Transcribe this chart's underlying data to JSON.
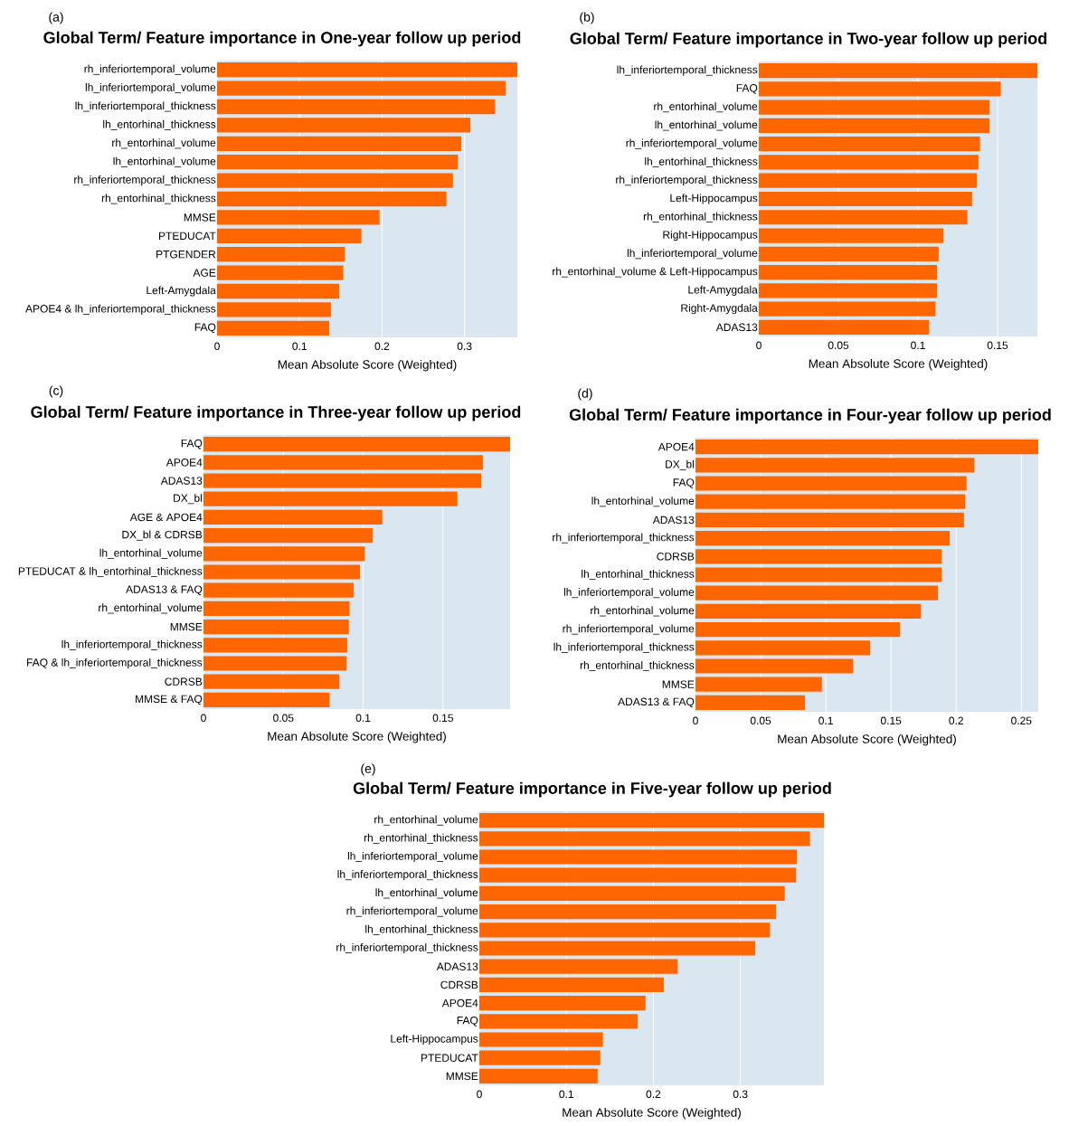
{
  "chart_data": [
    {
      "type": "bar",
      "orientation": "horizontal",
      "title": "Global Term/ Feature importance in One-year follow up period",
      "xlabel": "Mean Absolute Score (Weighted)",
      "annotations": [
        "(a)"
      ],
      "color": "#ff6600",
      "grid": "x",
      "xlim": [
        0,
        0.364
      ],
      "xticks": [
        0,
        0.1,
        0.2,
        0.3
      ],
      "categories": [
        "rh_inferiortemporal_volume",
        "lh_inferiortemporal_volume",
        "lh_inferiortemporal_thickness",
        "lh_entorhinal_thickness",
        "rh_entorhinal_volume",
        "lh_entorhinal_volume",
        "rh_inferiortemporal_thickness",
        "rh_entorhinal_thickness",
        "MMSE",
        "PTEDUCAT",
        "PTGENDER",
        "AGE",
        "Left-Amygdala",
        "APOE4 & lh_inferiortemporal_thickness",
        "FAQ"
      ],
      "values": [
        0.364,
        0.35,
        0.337,
        0.307,
        0.296,
        0.292,
        0.286,
        0.278,
        0.197,
        0.175,
        0.155,
        0.153,
        0.148,
        0.138,
        0.136
      ]
    },
    {
      "type": "bar",
      "orientation": "horizontal",
      "title": "Global Term/ Feature importance in Two-year follow up period",
      "xlabel": "Mean Absolute Score (Weighted)",
      "annotations": [
        "(b)"
      ],
      "color": "#ff6600",
      "grid": "x",
      "xlim": [
        0,
        0.175
      ],
      "xticks": [
        0,
        0.05,
        0.1,
        0.15
      ],
      "categories": [
        "lh_inferiortemporal_thickness",
        "FAQ",
        "rh_entorhinal_volume",
        "lh_entorhinal_volume",
        "rh_inferiortemporal_volume",
        "lh_entorhinal_thickness",
        "rh_inferiortemporal_thickness",
        "Left-Hippocampus",
        "rh_entorhinal_thickness",
        "Right-Hippocampus",
        "lh_inferiortemporal_volume",
        "rh_entorhinal_volume & Left-Hippocampus",
        "Left-Amygdala",
        "Right-Amygdala",
        "ADAS13"
      ],
      "values": [
        0.175,
        0.152,
        0.145,
        0.145,
        0.139,
        0.138,
        0.137,
        0.134,
        0.131,
        0.116,
        0.113,
        0.112,
        0.112,
        0.111,
        0.107
      ]
    },
    {
      "type": "bar",
      "orientation": "horizontal",
      "title": "Global Term/ Feature importance in Three-year follow up period",
      "xlabel": "Mean Absolute Score (Weighted)",
      "annotations": [
        "(c)"
      ],
      "color": "#ff6600",
      "grid": "x",
      "xlim": [
        0,
        0.192
      ],
      "xticks": [
        0,
        0.05,
        0.1,
        0.15
      ],
      "categories": [
        "FAQ",
        "APOE4",
        "ADAS13",
        "DX_bl",
        "AGE & APOE4",
        "DX_bl & CDRSB",
        "lh_entorhinal_volume",
        "PTEDUCAT & lh_entorhinal_thickness",
        "ADAS13 & FAQ",
        "rh_entorhinal_volume",
        "MMSE",
        "lh_inferiortemporal_thickness",
        "FAQ & lh_inferiortemporal_thickness",
        "CDRSB",
        "MMSE & FAQ"
      ],
      "values": [
        0.192,
        0.175,
        0.174,
        0.159,
        0.112,
        0.106,
        0.101,
        0.098,
        0.094,
        0.0915,
        0.091,
        0.09,
        0.0896,
        0.085,
        0.079
      ]
    },
    {
      "type": "bar",
      "orientation": "horizontal",
      "title": "Global Term/ Feature importance in Four-year follow up period",
      "xlabel": "Mean Absolute Score (Weighted)",
      "annotations": [
        "(d)"
      ],
      "color": "#ff6600",
      "grid": "x",
      "xlim": [
        0,
        0.263
      ],
      "xticks": [
        0,
        0.05,
        0.1,
        0.15,
        0.2,
        0.25
      ],
      "categories": [
        "APOE4",
        "DX_bl",
        "FAQ",
        "lh_entorhinal_volume",
        "ADAS13",
        "rh_inferiortemporal_thickness",
        "CDRSB",
        "lh_entorhinal_thickness",
        "lh_inferiortemporal_volume",
        "rh_entorhinal_volume",
        "rh_inferiortemporal_volume",
        "lh_inferiortemporal_thickness",
        "rh_entorhinal_thickness",
        "MMSE",
        "ADAS13 & FAQ"
      ],
      "values": [
        0.263,
        0.214,
        0.208,
        0.207,
        0.206,
        0.195,
        0.189,
        0.189,
        0.186,
        0.173,
        0.157,
        0.134,
        0.121,
        0.097,
        0.084
      ]
    },
    {
      "type": "bar",
      "orientation": "horizontal",
      "title": "Global Term/ Feature importance in Five-year follow up period",
      "xlabel": "Mean Absolute Score (Weighted)",
      "annotations": [
        "(e)"
      ],
      "color": "#ff6600",
      "grid": "x",
      "xlim": [
        0,
        0.396
      ],
      "xticks": [
        0,
        0.1,
        0.2,
        0.3
      ],
      "categories": [
        "rh_entorhinal_volume",
        "rh_entorhinal_thickness",
        "lh_inferiortemporal_volume",
        "lh_inferiortemporal_thickness",
        "lh_entorhinal_volume",
        "rh_inferiortemporal_volume",
        "lh_entorhinal_thickness",
        "rh_inferiortemporal_thickness",
        "ADAS13",
        "CDRSB",
        "APOE4",
        "FAQ",
        "Left-Hippocampus",
        "PTEDUCAT",
        "MMSE"
      ],
      "values": [
        0.396,
        0.38,
        0.365,
        0.364,
        0.351,
        0.341,
        0.334,
        0.317,
        0.228,
        0.212,
        0.191,
        0.182,
        0.142,
        0.139,
        0.136
      ]
    }
  ]
}
